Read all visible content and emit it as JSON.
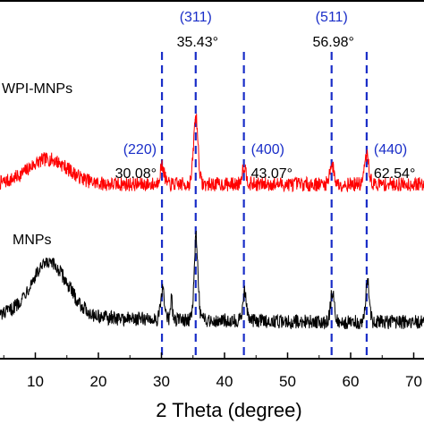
{
  "chart_data": {
    "type": "line",
    "title": "",
    "xlabel": "2 Theta (degree)",
    "ylabel": "",
    "xlim": [
      6,
      74
    ],
    "x_ticks": [
      10,
      20,
      30,
      40,
      50,
      60,
      70
    ],
    "grid": false,
    "legend": "none",
    "series": [
      {
        "name": "WPI-MNPs",
        "color": "#ff0000",
        "baseline_intensity": 70,
        "noise": 4,
        "features": [
          {
            "x": 12.0,
            "height": 14,
            "width": 3.2
          },
          {
            "x": 30.1,
            "height": 10,
            "width": 0.35
          },
          {
            "x": 35.45,
            "height": 38,
            "width": 0.35
          },
          {
            "x": 43.1,
            "height": 10,
            "width": 0.35
          },
          {
            "x": 57.0,
            "height": 11,
            "width": 0.35
          },
          {
            "x": 62.55,
            "height": 16,
            "width": 0.35
          }
        ]
      },
      {
        "name": "MNPs",
        "color": "#000000",
        "baseline_intensity": 6,
        "noise": 4,
        "features": [
          {
            "x": 12.2,
            "height": 30,
            "width": 3.0
          },
          {
            "x": 30.2,
            "height": 16,
            "width": 0.3
          },
          {
            "x": 31.6,
            "height": 14,
            "width": 0.12
          },
          {
            "x": 35.5,
            "height": 46,
            "width": 0.3
          },
          {
            "x": 43.2,
            "height": 16,
            "width": 0.3
          },
          {
            "x": 57.1,
            "height": 17,
            "width": 0.3
          },
          {
            "x": 62.7,
            "height": 22,
            "width": 0.3
          }
        ]
      }
    ],
    "reference_lines": [
      {
        "x": 30.08,
        "hkl": "(220)",
        "angle": "30.08°"
      },
      {
        "x": 35.43,
        "hkl": "(311)",
        "angle": "35.43°"
      },
      {
        "x": 43.07,
        "hkl": "(400)",
        "angle": "43.07°"
      },
      {
        "x": 56.98,
        "hkl": "(511)",
        "angle": "56.98°"
      },
      {
        "x": 62.54,
        "hkl": "(440)",
        "angle": "62.54°"
      }
    ],
    "series_labels": {
      "wpi": "WPI-MNPs",
      "mnps": "MNPs"
    }
  },
  "colors": {
    "hkl": "#1a2ec8",
    "reference_line": "#1a2ec8",
    "axis": "#000000"
  }
}
